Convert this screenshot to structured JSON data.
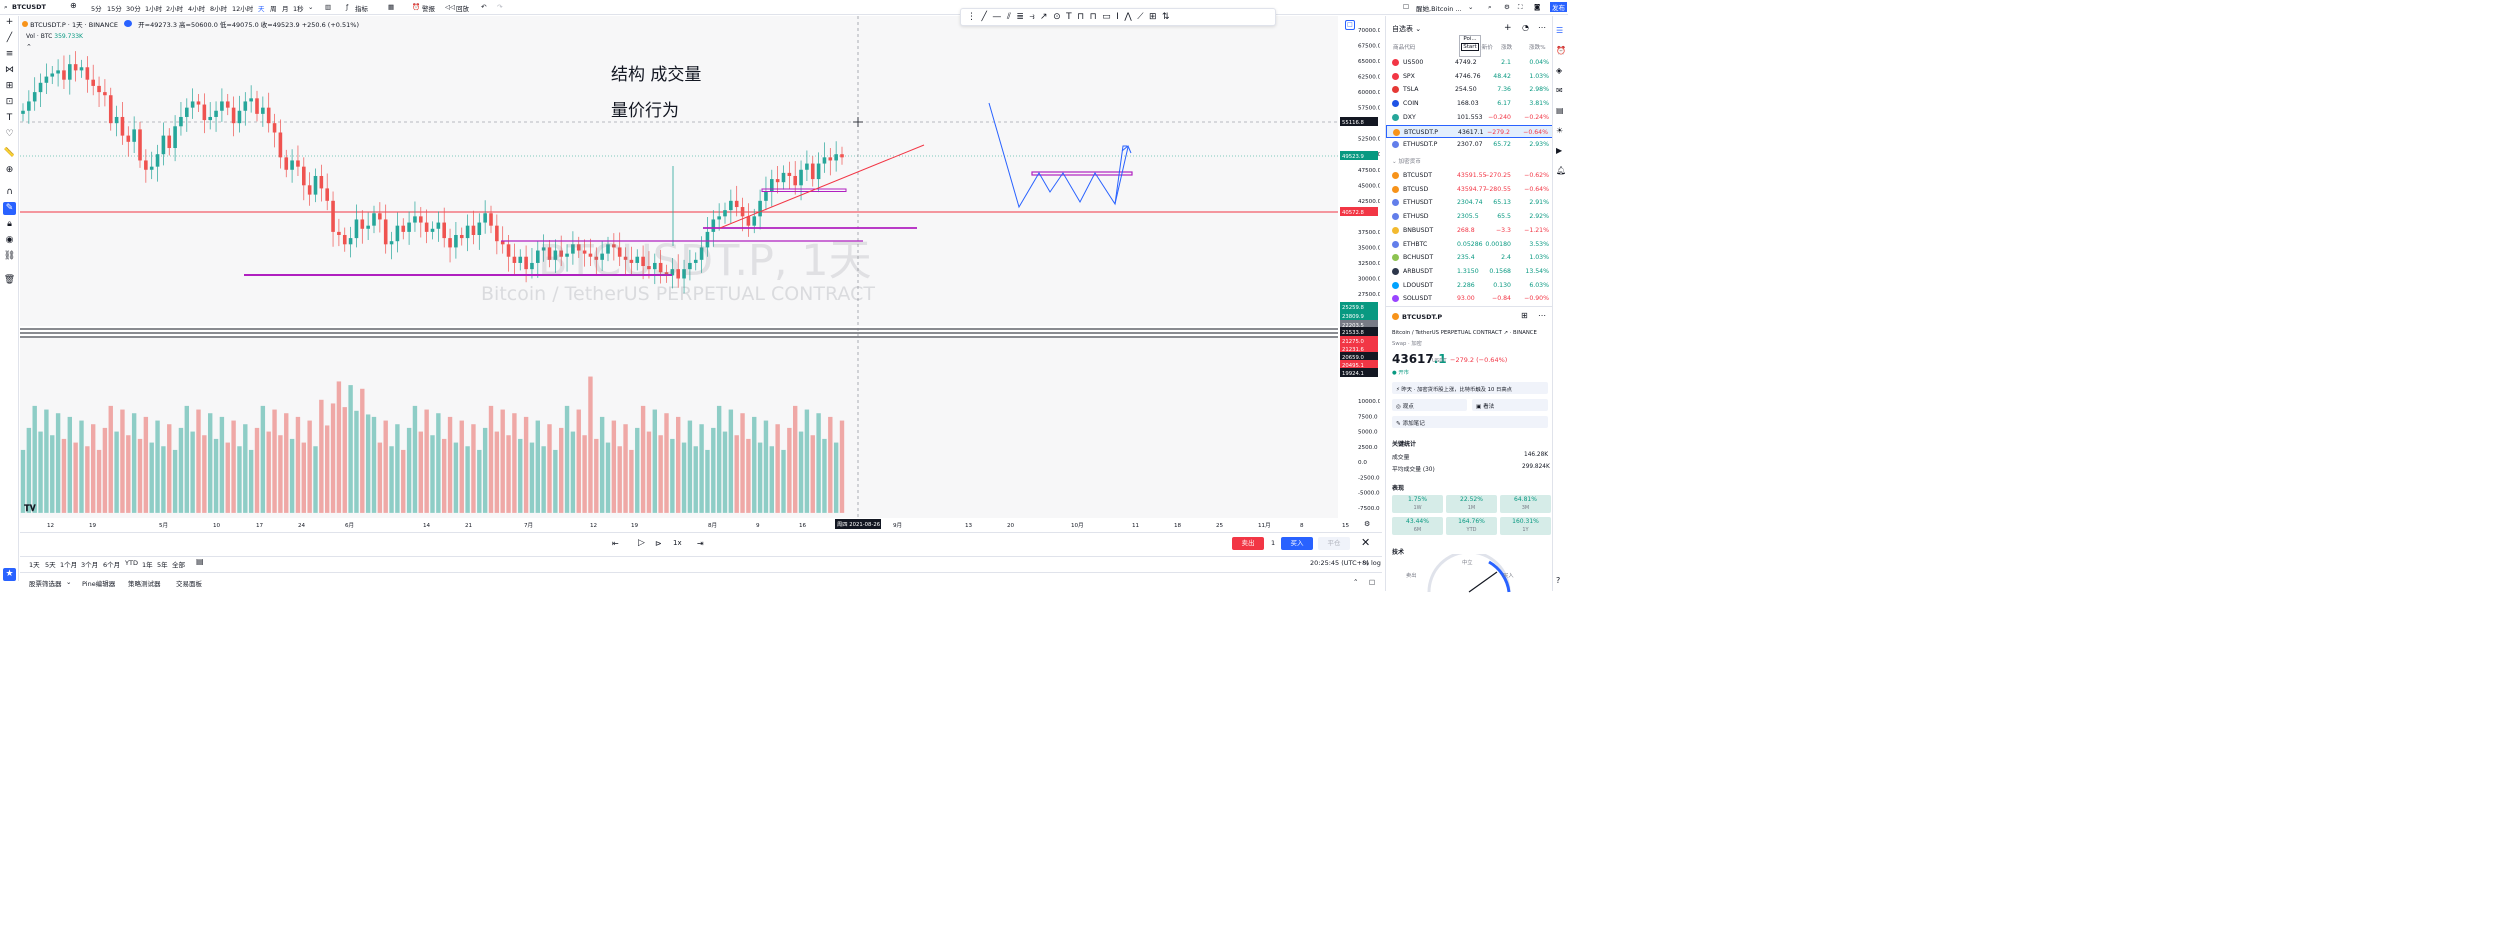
{
  "topbar": {
    "symbol": "BTCUSDT",
    "intervals": [
      "5分",
      "15分",
      "30分",
      "1小时",
      "2小时",
      "4小时",
      "8小时",
      "12小时",
      "天",
      "周",
      "月",
      "1秒"
    ],
    "active_interval": "天",
    "indicators": "指标",
    "alert": "警报",
    "replay": "回放",
    "right_title": "醒她,Bitcoin ...",
    "publish": "发布"
  },
  "legend": {
    "title": "BTCUSDT.P · 1天 · BINANCE",
    "ohlc": "开=49273.3 高=50600.0 低=49075.0 收=49523.9 +250.6 (+0.51%)",
    "vol_label": "Vol · BTC",
    "vol_value": "359.733K"
  },
  "annotations": {
    "line1": "结构  成交量",
    "line2": "量价行为",
    "watermark_big": "BTCUSDT.P, 1天",
    "watermark_small": "Bitcoin / TetherUS PERPETUAL CONTRACT"
  },
  "price_axis": [
    "70000.0",
    "67500.0",
    "65000.0",
    "62500.0",
    "60000.0",
    "57500.0",
    "52500.0",
    "50000.0",
    "47500.0",
    "45000.0",
    "42500.0",
    "37500.0",
    "35000.0",
    "32500.0",
    "30000.0",
    "27500.0"
  ],
  "price_tags": [
    {
      "label": "55116.8",
      "color": "#131722"
    },
    {
      "label": "49523.9",
      "color": "#089981"
    },
    {
      "label": "40572.8",
      "color": "#f23645"
    },
    {
      "label": "25259.8",
      "color": "#089981"
    },
    {
      "label": "23809.9",
      "color": "#089981"
    },
    {
      "label": "22203.5",
      "color": "#787b86"
    },
    {
      "label": "21533.8",
      "color": "#131722"
    },
    {
      "label": "21275.0",
      "color": "#f23645"
    },
    {
      "label": "21231.6",
      "color": "#f23645"
    },
    {
      "label": "20659.0",
      "color": "#131722"
    },
    {
      "label": "20495.1",
      "color": "#f23645"
    },
    {
      "label": "19924.1",
      "color": "#131722"
    }
  ],
  "vol_axis": [
    "10000.0",
    "7500.0",
    "5000.0",
    "2500.0",
    "0.0",
    "-2500.0",
    "-5000.0",
    "-7500.0"
  ],
  "time_axis": [
    "12",
    "19",
    "5月",
    "10",
    "17",
    "24",
    "6月",
    "14",
    "21",
    "7月",
    "12",
    "19",
    "8月",
    "9",
    "16",
    "9月",
    "13",
    "20",
    "10月",
    "11",
    "18",
    "25",
    "11月",
    "8",
    "15"
  ],
  "cursor_date": "周四 2021-08-26",
  "replay_bar": {
    "speed": "1x",
    "sell": "卖出",
    "qty": "1",
    "buy": "买入",
    "flat": "平仓"
  },
  "ranges": [
    "1天",
    "5天",
    "1个月",
    "3个月",
    "6个月",
    "YTD",
    "1年",
    "5年",
    "全部"
  ],
  "footer": {
    "tabs": [
      "股票筛选器",
      "Pine编辑器",
      "策略测试器",
      "交易面板"
    ],
    "clock": "20:25:45 (UTC+8)"
  },
  "watchlist": {
    "title": "自选表",
    "headers": [
      "商品代码",
      "最新价",
      "涨跌",
      "涨跌%"
    ],
    "rows": [
      {
        "sym": "US500",
        "last": "4749.2",
        "chg": "2.1",
        "pct": "0.04%",
        "dir": "up",
        "dot": "#f23645"
      },
      {
        "sym": "SPX",
        "last": "4746.76",
        "chg": "48.42",
        "pct": "1.03%",
        "dir": "up",
        "dot": "#f23645"
      },
      {
        "sym": "TSLA",
        "last": "254.50",
        "chg": "7.36",
        "pct": "2.98%",
        "dir": "up",
        "dot": "#e53935"
      },
      {
        "sym": "COIN",
        "last": "168.03",
        "chg": "6.17",
        "pct": "3.81%",
        "dir": "up",
        "dot": "#1e53e5"
      },
      {
        "sym": "DXY",
        "last": "101.553",
        "chg": "−0.240",
        "pct": "−0.24%",
        "dir": "dn",
        "dot": "#26a69a"
      },
      {
        "sym": "BTCUSDT.P",
        "last": "43617.1",
        "chg": "−279.2",
        "pct": "−0.64%",
        "dir": "dn",
        "dot": "#f7931a"
      },
      {
        "sym": "ETHUSDT.P",
        "last": "2307.07",
        "chg": "65.72",
        "pct": "2.93%",
        "dir": "up",
        "dot": "#627eea"
      }
    ],
    "section": "加密货币",
    "crypto": [
      {
        "sym": "BTCUSDT",
        "last": "43591.55",
        "chg": "−270.25",
        "pct": "−0.62%",
        "dir": "dn",
        "dot": "#f7931a"
      },
      {
        "sym": "BTCUSD",
        "last": "43594.77",
        "chg": "−280.55",
        "pct": "−0.64%",
        "dir": "dn",
        "dot": "#f7931a"
      },
      {
        "sym": "ETHUSDT",
        "last": "2304.74",
        "chg": "65.13",
        "pct": "2.91%",
        "dir": "up",
        "dot": "#627eea"
      },
      {
        "sym": "ETHUSD",
        "last": "2305.5",
        "chg": "65.5",
        "pct": "2.92%",
        "dir": "up",
        "dot": "#627eea"
      },
      {
        "sym": "BNBUSDT",
        "last": "268.8",
        "chg": "−3.3",
        "pct": "−1.21%",
        "dir": "dn",
        "dot": "#f3ba2f"
      },
      {
        "sym": "ETHBTC",
        "last": "0.05286",
        "chg": "0.00180",
        "pct": "3.53%",
        "dir": "up",
        "dot": "#627eea"
      },
      {
        "sym": "BCHUSDT",
        "last": "235.4",
        "chg": "2.4",
        "pct": "1.03%",
        "dir": "up",
        "dot": "#8dc351"
      },
      {
        "sym": "ARBUSDT",
        "last": "1.3150",
        "chg": "0.1568",
        "pct": "13.54%",
        "dir": "up",
        "dot": "#2d374b"
      },
      {
        "sym": "LDOUSDT",
        "last": "2.286",
        "chg": "0.130",
        "pct": "6.03%",
        "dir": "up",
        "dot": "#00a3ff"
      },
      {
        "sym": "SOLUSDT",
        "last": "93.00",
        "chg": "−0.84",
        "pct": "−0.90%",
        "dir": "dn",
        "dot": "#9945ff"
      }
    ]
  },
  "details": {
    "sym": "BTCUSDT.P",
    "name": "Bitcoin / TetherUS PERPETUAL CONTRACT",
    "exch": "BINANCE",
    "type": "Swap · 加密",
    "price_main": "43617",
    "price_dec": ".1",
    "ccy": "USDT",
    "chg": "−279.2 (−0.64%)",
    "status": "开市",
    "news": "昨天 · 加密货币股上涨，比特币触及 10 日高点",
    "ideas": "观点",
    "minds": "看法",
    "add_note": "添加笔记",
    "key_stats": "关键统计",
    "volume_label": "成交量",
    "volume": "146.28K",
    "avg_vol_label": "平均成交量 (30)",
    "avg_vol": "299.824K",
    "perf_title": "表现",
    "perf": [
      {
        "v": "1.75%",
        "p": "1W"
      },
      {
        "v": "22.52%",
        "p": "1M"
      },
      {
        "v": "64.81%",
        "p": "3M"
      },
      {
        "v": "43.44%",
        "p": "6M"
      },
      {
        "v": "164.76%",
        "p": "YTD"
      },
      {
        "v": "160.31%",
        "p": "1Y"
      }
    ],
    "tech": "技术",
    "gauge": {
      "sell": "卖出",
      "neutral": "中立",
      "buy": "买入"
    }
  },
  "tooltip": {
    "title": "Poi...",
    "btn": "Start"
  }
}
